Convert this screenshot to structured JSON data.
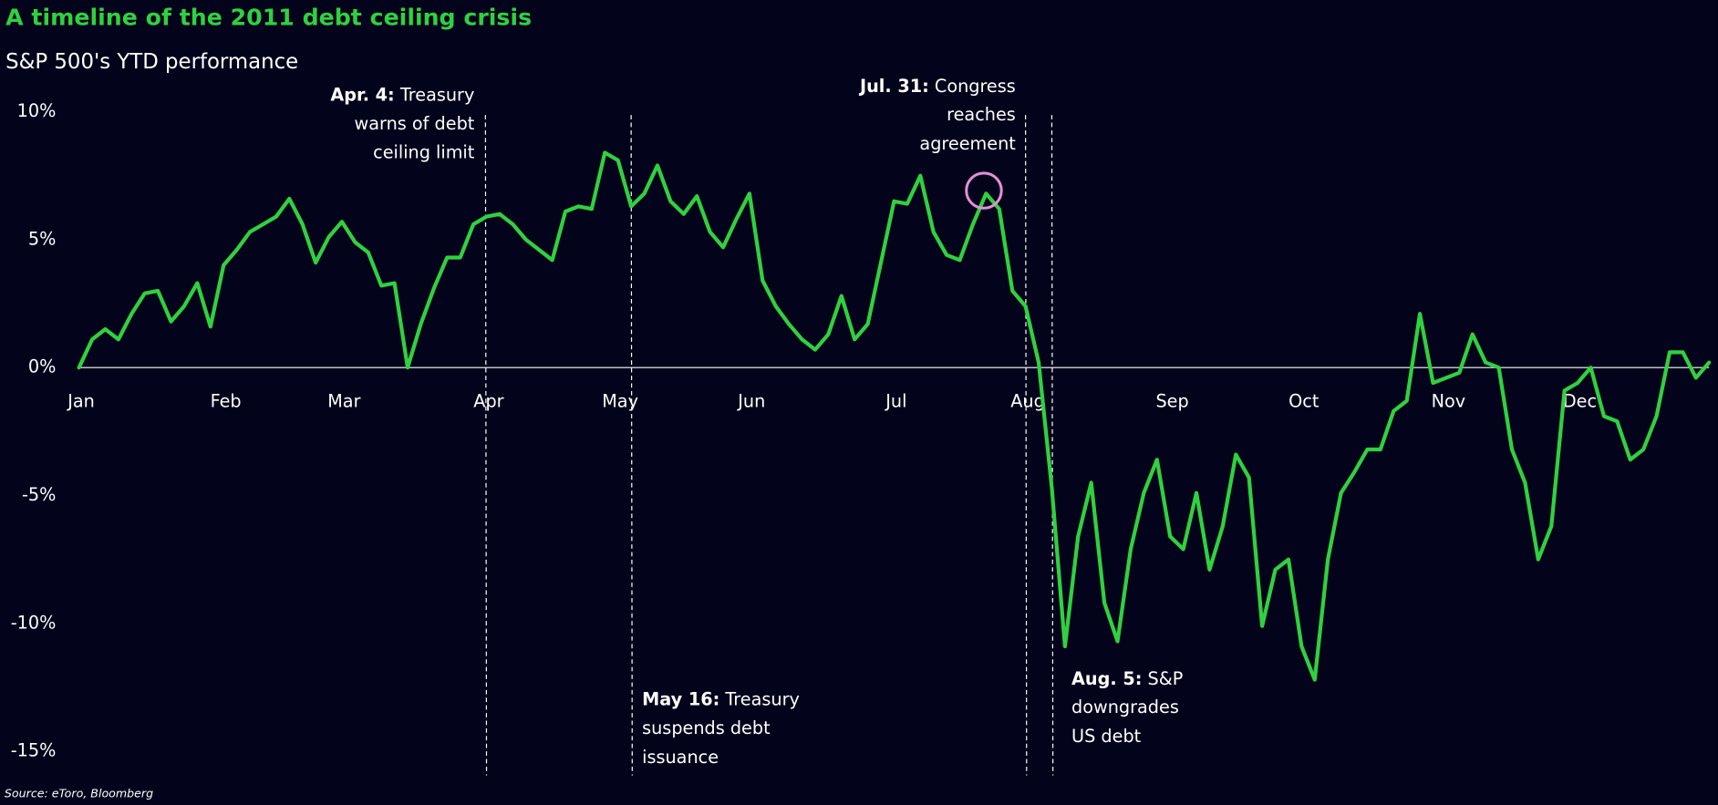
{
  "chart_data": {
    "type": "line",
    "title": "A timeline of the 2011 debt ceiling crisis",
    "subtitle": "S&P 500's YTD performance",
    "source": "Source: eToro, Bloomberg",
    "categories": [
      "Jan",
      null,
      null,
      null,
      null,
      null,
      null,
      null,
      null,
      null,
      null,
      "Feb",
      null,
      null,
      null,
      null,
      null,
      null,
      null,
      null,
      "Mar",
      null,
      null,
      null,
      null,
      null,
      null,
      null,
      null,
      null,
      null,
      "Apr",
      null,
      null,
      null,
      null,
      null,
      null,
      null,
      null,
      null,
      "May",
      null,
      null,
      null,
      null,
      null,
      null,
      null,
      null,
      null,
      "Jun",
      null,
      null,
      null,
      null,
      null,
      null,
      null,
      null,
      null,
      null,
      "Jul",
      null,
      null,
      null,
      null,
      null,
      null,
      null,
      null,
      null,
      "Aug",
      null,
      null,
      null,
      null,
      null,
      null,
      null,
      null,
      null,
      null,
      "Sep",
      null,
      null,
      null,
      null,
      null,
      null,
      null,
      null,
      null,
      "Oct",
      null,
      null,
      null,
      null,
      null,
      null,
      null,
      null,
      null,
      null,
      "Nov",
      null,
      null,
      null,
      null,
      null,
      null,
      null,
      null,
      null,
      "Dec",
      null,
      null,
      null,
      null,
      null,
      null,
      null,
      null,
      null,
      null
    ],
    "values": [
      0,
      1.1,
      1.5,
      1.1,
      2.1,
      2.9,
      3.0,
      1.8,
      2.4,
      3.3,
      1.6,
      4.0,
      4.6,
      5.3,
      5.6,
      5.9,
      6.6,
      5.6,
      4.1,
      5.1,
      5.7,
      4.9,
      4.5,
      3.2,
      3.3,
      0,
      1.7,
      3.1,
      4.3,
      4.3,
      5.6,
      5.9,
      6.0,
      5.6,
      5.0,
      4.6,
      4.2,
      6.1,
      6.3,
      6.2,
      8.4,
      8.1,
      6.3,
      6.8,
      7.9,
      6.5,
      6.0,
      6.7,
      5.3,
      4.7,
      5.8,
      6.8,
      3.4,
      2.4,
      1.7,
      1.1,
      0.7,
      1.3,
      2.8,
      1.1,
      1.7,
      4.1,
      6.5,
      6.4,
      7.5,
      5.3,
      4.4,
      4.2,
      5.6,
      6.8,
      6.2,
      3.0,
      2.4,
      0.2,
      -4.7,
      -10.9,
      -6.6,
      -4.5,
      -9.2,
      -10.7,
      -7.1,
      -4.9,
      -3.6,
      -6.6,
      -7.1,
      -4.9,
      -7.9,
      -6.2,
      -3.4,
      -4.3,
      -10.1,
      -7.9,
      -7.5,
      -10.9,
      -12.2,
      -7.5,
      -4.9,
      -4.1,
      -3.2,
      -3.2,
      -1.7,
      -1.3,
      2.1,
      -0.6,
      -0.4,
      -0.2,
      1.3,
      0.2,
      0,
      -3.2,
      -4.5,
      -7.5,
      -6.2,
      -0.9,
      -0.6,
      0,
      -1.9,
      -2.1,
      -3.6,
      -3.2,
      -1.9,
      0.6,
      0.6,
      -0.4,
      0.2
    ],
    "color": "#2fd13f",
    "ylim": [
      -15,
      10
    ],
    "yticks": [
      {
        "value": 10,
        "label": "10%"
      },
      {
        "value": 5,
        "label": "5%"
      },
      {
        "value": 0,
        "label": "0%"
      },
      {
        "value": -5,
        "label": "-5%"
      },
      {
        "value": -10,
        "label": "-10%"
      },
      {
        "value": -15,
        "label": "-15%"
      }
    ],
    "annotations": [
      {
        "label": "Apr. 4:",
        "lines": [
          "Treasury",
          "warns of debt",
          "ceiling limit"
        ]
      },
      {
        "label": "May 16:",
        "lines": [
          "Treasury",
          "suspends debt",
          "issuance"
        ]
      },
      {
        "label": "Jul. 31:",
        "lines": [
          "Congress",
          "reaches",
          "agreement"
        ]
      },
      {
        "label": "Aug. 5:",
        "lines": [
          "S&P",
          "downgrades",
          "US debt"
        ]
      }
    ]
  }
}
